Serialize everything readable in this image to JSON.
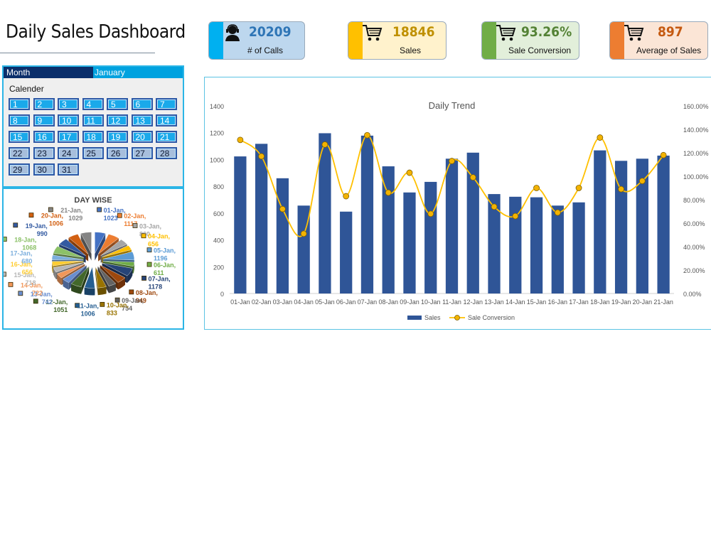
{
  "header": {
    "title": "Daily Sales Dashboard"
  },
  "kpis": [
    {
      "value": "20209",
      "label": "# of Calls",
      "icon": "call-center-agent-icon",
      "accent": "#00b0f0",
      "bg": "#bdd7ee",
      "value_color": "#2e75b6"
    },
    {
      "value": "18846",
      "label": "Sales",
      "icon": "shopping-cart-icon",
      "accent": "#ffc000",
      "bg": "#fff2cc",
      "value_color": "#bf9000"
    },
    {
      "value": "93.26%",
      "label": "Sale Conversion",
      "icon": "shopping-cart-icon",
      "accent": "#70ad47",
      "bg": "#e2efda",
      "value_color": "#548235"
    },
    {
      "value": "897",
      "label": "Average of Sales",
      "icon": "shopping-cart-icon",
      "accent": "#ed7d31",
      "bg": "#fbe5d6",
      "value_color": "#c55a11"
    }
  ],
  "calendar": {
    "month_label": "Month",
    "month_value": "January",
    "title": "Calender",
    "days": [
      "1",
      "2",
      "3",
      "4",
      "5",
      "6",
      "7",
      "8",
      "9",
      "10",
      "11",
      "12",
      "13",
      "14",
      "15",
      "16",
      "17",
      "18",
      "19",
      "20",
      "21",
      "22",
      "23",
      "24",
      "25",
      "26",
      "27",
      "28",
      "29",
      "30",
      "31"
    ],
    "active_through": 21
  },
  "chart_data": [
    {
      "type": "bar",
      "title": "Daily Trend",
      "categories": [
        "01-Jan",
        "02-Jan",
        "03-Jan",
        "04-Jan",
        "05-Jan",
        "06-Jan",
        "07-Jan",
        "08-Jan",
        "09-Jan",
        "10-Jan",
        "11-Jan",
        "12-Jan",
        "13-Jan",
        "14-Jan",
        "15-Jan",
        "16-Jan",
        "17-Jan",
        "18-Jan",
        "19-Jan",
        "20-Jan",
        "21-Jan"
      ],
      "series": [
        {
          "name": "Sales",
          "type": "bar",
          "axis": "left",
          "color": "#2f5597",
          "values": [
            1023,
            1117,
            860,
            656,
            1196,
            611,
            1178,
            949,
            754,
            833,
            1006,
            1051,
            742,
            722,
            718,
            656,
            680,
            1068,
            990,
            1006,
            1029
          ]
        },
        {
          "name": "Sale Conversion",
          "type": "line",
          "axis": "right",
          "color": "#ffc000",
          "values": [
            131,
            117,
            72,
            51,
            127,
            83,
            135,
            86,
            103,
            68,
            113,
            99,
            74,
            66,
            90,
            69,
            90,
            133,
            89,
            96,
            118
          ]
        }
      ],
      "ylim": [
        0,
        1400
      ],
      "yticks": [
        "0",
        "200",
        "400",
        "600",
        "800",
        "1000",
        "1200",
        "1400"
      ],
      "y2lim": [
        0,
        160
      ],
      "y2ticks": [
        "0.00%",
        "20.00%",
        "40.00%",
        "60.00%",
        "80.00%",
        "100.00%",
        "120.00%",
        "140.00%",
        "160.00%"
      ],
      "legend": "bottom",
      "grid": false
    },
    {
      "type": "pie",
      "title": "DAY WISE",
      "legend": "none",
      "labels": [
        {
          "date": "01-Jan,",
          "value": "1023",
          "color": "#4472c4"
        },
        {
          "date": "02-Jan,",
          "value": "1117",
          "color": "#ed7d31"
        },
        {
          "date": "03-Jan,",
          "value": "860",
          "color": "#a5a5a5"
        },
        {
          "date": "04-Jan,",
          "value": "656",
          "color": "#ffc000"
        },
        {
          "date": "05-Jan,",
          "value": "1196",
          "color": "#5b9bd5"
        },
        {
          "date": "06-Jan,",
          "value": "611",
          "color": "#70ad47"
        },
        {
          "date": "07-Jan,",
          "value": "1178",
          "color": "#264478"
        },
        {
          "date": "08-Jan,",
          "value": "949",
          "color": "#9e480e"
        },
        {
          "date": "09-Jan,",
          "value": "754",
          "color": "#636363"
        },
        {
          "date": "10-Jan,",
          "value": "833",
          "color": "#997300"
        },
        {
          "date": "11-Jan,",
          "value": "1006",
          "color": "#255e91"
        },
        {
          "date": "12-Jan,",
          "value": "1051",
          "color": "#43682b"
        },
        {
          "date": "13-Jan,",
          "value": "742",
          "color": "#698ed0"
        },
        {
          "date": "14-Jan,",
          "value": "722",
          "color": "#f1975a"
        },
        {
          "date": "15-Jan,",
          "value": "718",
          "color": "#b7b7b7"
        },
        {
          "date": "16-Jan,",
          "value": "656",
          "color": "#ffcd33"
        },
        {
          "date": "17-Jan,",
          "value": "680",
          "color": "#7cafdd"
        },
        {
          "date": "18-Jan,",
          "value": "1068",
          "color": "#8cc168"
        },
        {
          "date": "19-Jan,",
          "value": "990",
          "color": "#335aa1"
        },
        {
          "date": "20-Jan,",
          "value": "1006",
          "color": "#d26012"
        },
        {
          "date": "21-Jan,",
          "value": "1029",
          "color": "#848484"
        }
      ]
    }
  ]
}
